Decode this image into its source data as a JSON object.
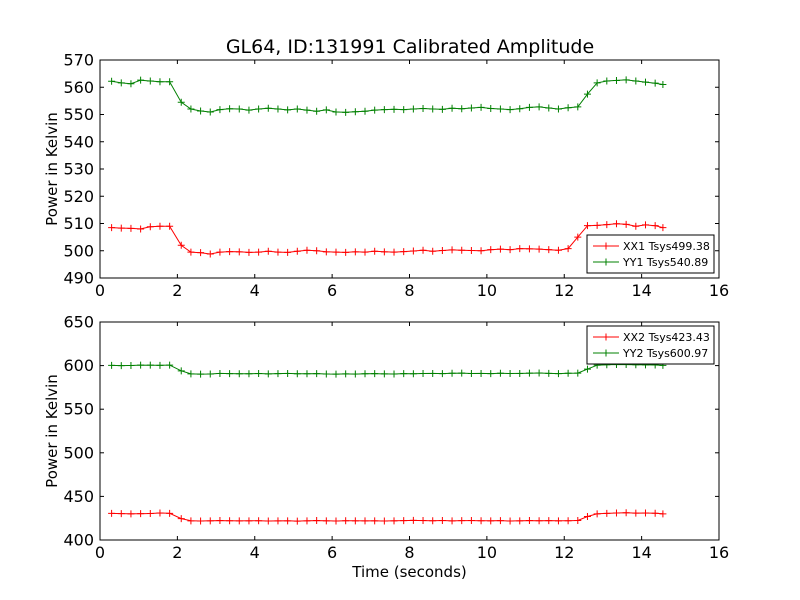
{
  "title": "GL64, ID:131991 Calibrated Amplitude",
  "chart_data": [
    {
      "type": "line",
      "ylabel": "Power in Kelvin",
      "xlabel": "",
      "xlim": [
        0,
        16
      ],
      "ylim": [
        490,
        570
      ],
      "xticks": [
        0,
        2,
        4,
        6,
        8,
        10,
        12,
        14,
        16
      ],
      "yticks": [
        490,
        500,
        510,
        520,
        530,
        540,
        550,
        560,
        570
      ],
      "legend": "lower-right",
      "x": [
        0.3,
        0.55,
        0.8,
        1.05,
        1.3,
        1.55,
        1.8,
        2.1,
        2.35,
        2.6,
        2.85,
        3.1,
        3.35,
        3.6,
        3.85,
        4.1,
        4.35,
        4.6,
        4.85,
        5.1,
        5.35,
        5.6,
        5.85,
        6.1,
        6.35,
        6.6,
        6.85,
        7.1,
        7.35,
        7.6,
        7.85,
        8.1,
        8.35,
        8.6,
        8.85,
        9.1,
        9.35,
        9.6,
        9.85,
        10.1,
        10.35,
        10.6,
        10.85,
        11.1,
        11.35,
        11.6,
        11.85,
        12.1,
        12.35,
        12.6,
        12.85,
        13.1,
        13.35,
        13.6,
        13.85,
        14.1,
        14.35,
        14.55
      ],
      "series": [
        {
          "name": "XX1 Tsys499.38",
          "color": "#ff0000",
          "values": [
            508.5,
            508.3,
            508.2,
            508.0,
            508.8,
            509.0,
            509.0,
            502.0,
            499.5,
            499.3,
            498.8,
            499.5,
            499.7,
            499.6,
            499.4,
            499.5,
            499.8,
            499.5,
            499.4,
            499.8,
            500.2,
            500.0,
            499.6,
            499.5,
            499.4,
            499.6,
            499.5,
            499.8,
            499.6,
            499.5,
            499.7,
            499.9,
            500.2,
            499.8,
            500.1,
            500.3,
            500.2,
            500.1,
            500.0,
            500.4,
            500.6,
            500.4,
            500.8,
            500.7,
            500.6,
            500.4,
            500.2,
            500.8,
            505.0,
            509.2,
            509.3,
            509.6,
            509.9,
            509.7,
            509.0,
            509.5,
            509.2,
            508.5
          ]
        },
        {
          "name": "YY1 Tsys540.89",
          "color": "#008000",
          "values": [
            562.2,
            561.6,
            561.3,
            562.6,
            562.3,
            562.0,
            562.0,
            554.5,
            552.0,
            551.3,
            550.9,
            551.8,
            552.1,
            552.0,
            551.6,
            552.0,
            552.3,
            552.0,
            551.7,
            552.0,
            551.6,
            551.2,
            551.7,
            550.9,
            550.8,
            551.0,
            551.2,
            551.6,
            551.8,
            551.9,
            551.8,
            552.0,
            552.2,
            552.0,
            551.9,
            552.3,
            552.1,
            552.4,
            552.6,
            552.2,
            552.0,
            551.8,
            552.1,
            552.6,
            552.8,
            552.4,
            552.0,
            552.5,
            552.8,
            557.5,
            561.6,
            562.3,
            562.5,
            562.7,
            562.3,
            561.9,
            561.5,
            561.0
          ]
        }
      ]
    },
    {
      "type": "line",
      "ylabel": "Power in Kelvin",
      "xlabel": "Time (seconds)",
      "xlim": [
        0,
        16
      ],
      "ylim": [
        400,
        650
      ],
      "xticks": [
        0,
        2,
        4,
        6,
        8,
        10,
        12,
        14,
        16
      ],
      "yticks": [
        400,
        450,
        500,
        550,
        600,
        650
      ],
      "legend": "upper-right",
      "x": [
        0.3,
        0.55,
        0.8,
        1.05,
        1.3,
        1.55,
        1.8,
        2.1,
        2.35,
        2.6,
        2.85,
        3.1,
        3.35,
        3.6,
        3.85,
        4.1,
        4.35,
        4.6,
        4.85,
        5.1,
        5.35,
        5.6,
        5.85,
        6.1,
        6.35,
        6.6,
        6.85,
        7.1,
        7.35,
        7.6,
        7.85,
        8.1,
        8.35,
        8.6,
        8.85,
        9.1,
        9.35,
        9.6,
        9.85,
        10.1,
        10.35,
        10.6,
        10.85,
        11.1,
        11.35,
        11.6,
        11.85,
        12.1,
        12.35,
        12.6,
        12.85,
        13.1,
        13.35,
        13.6,
        13.85,
        14.1,
        14.35,
        14.55
      ],
      "series": [
        {
          "name": "XX2 Tsys423.43",
          "color": "#ff0000",
          "values": [
            430.5,
            430.3,
            430.0,
            430.2,
            430.4,
            431.0,
            430.6,
            424.5,
            422.0,
            421.8,
            422.0,
            422.3,
            422.1,
            421.9,
            422.0,
            422.1,
            421.8,
            421.9,
            422.0,
            421.7,
            422.0,
            422.3,
            422.0,
            421.8,
            422.1,
            422.0,
            421.9,
            422.0,
            421.8,
            422.0,
            422.2,
            422.5,
            422.3,
            422.1,
            422.4,
            421.9,
            422.2,
            422.3,
            422.1,
            422.0,
            422.2,
            421.8,
            422.0,
            422.3,
            422.1,
            422.2,
            422.0,
            422.1,
            422.4,
            427.0,
            430.0,
            430.5,
            431.0,
            431.2,
            430.8,
            431.0,
            430.7,
            430.0
          ]
        },
        {
          "name": "YY2 Tsys600.97",
          "color": "#008000",
          "values": [
            600.2,
            600.0,
            600.1,
            600.6,
            600.5,
            600.3,
            600.6,
            594.0,
            590.5,
            590.2,
            590.4,
            591.0,
            590.8,
            590.6,
            590.7,
            590.9,
            590.5,
            590.8,
            591.0,
            590.7,
            590.6,
            590.8,
            590.4,
            590.2,
            590.5,
            590.3,
            590.6,
            590.8,
            590.5,
            590.4,
            590.8,
            590.6,
            590.9,
            591.0,
            590.8,
            591.2,
            591.4,
            590.9,
            591.0,
            590.8,
            591.2,
            590.9,
            591.0,
            591.3,
            591.5,
            591.1,
            590.8,
            591.2,
            591.4,
            596.0,
            600.5,
            601.0,
            601.3,
            601.2,
            601.0,
            600.8,
            600.7,
            600.2
          ]
        }
      ]
    }
  ]
}
